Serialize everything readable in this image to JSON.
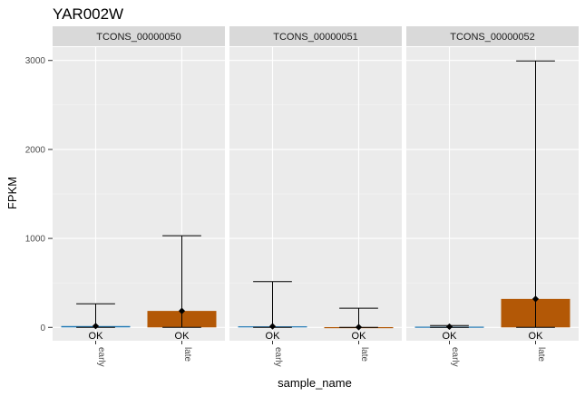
{
  "chart_data": {
    "type": "bar",
    "title": "YAR002W",
    "xlabel": "sample_name",
    "ylabel": "FPKM",
    "ylim": [
      -150,
      3150
    ],
    "yticks": [
      0,
      1000,
      2000,
      3000
    ],
    "y_tick_labels": [
      "0",
      "1000",
      "2000",
      "3000"
    ],
    "categories": [
      "early",
      "late"
    ],
    "status_label": "OK",
    "colors": {
      "early": "#1f78b4",
      "late": "#b35806",
      "panel_bg": "#ebebeb",
      "strip_bg": "#d9d9d9",
      "grid_major": "#ffffff"
    },
    "grid": true,
    "panels": [
      {
        "strip": "TCONS_00000050",
        "bars": [
          {
            "category": "early",
            "value": 15,
            "lower": 0,
            "upper": 265
          },
          {
            "category": "late",
            "value": 185,
            "lower": 0,
            "upper": 1030
          }
        ]
      },
      {
        "strip": "TCONS_00000051",
        "bars": [
          {
            "category": "early",
            "value": 12,
            "lower": 0,
            "upper": 515
          },
          {
            "category": "late",
            "value": 3,
            "lower": 0,
            "upper": 215
          }
        ]
      },
      {
        "strip": "TCONS_00000052",
        "bars": [
          {
            "category": "early",
            "value": 8,
            "lower": 0,
            "upper": 20
          },
          {
            "category": "late",
            "value": 320,
            "lower": 0,
            "upper": 2995
          }
        ]
      }
    ]
  }
}
